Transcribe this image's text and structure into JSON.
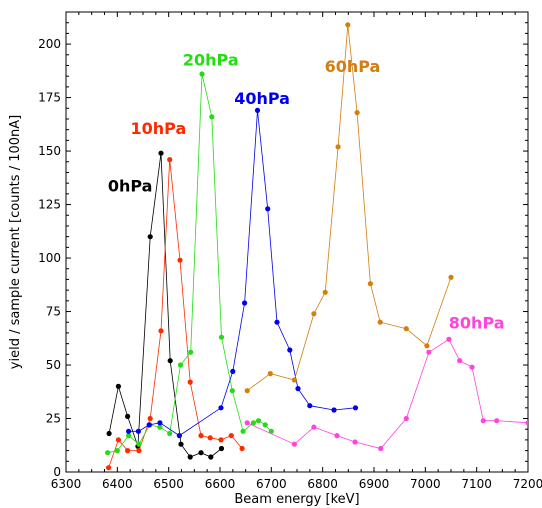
{
  "chart_data": {
    "type": "line",
    "xlabel": "Beam energy [keV]",
    "ylabel": "yield / sample current [counts / 100nA]",
    "xlim": [
      6300,
      7200
    ],
    "ylim": [
      0,
      215
    ],
    "x_ticks": [
      6300,
      6400,
      6500,
      6600,
      6700,
      6800,
      6900,
      7000,
      7100,
      7200
    ],
    "y_ticks": [
      0,
      25,
      50,
      75,
      100,
      125,
      150,
      175,
      200
    ],
    "x_tick_labels": [
      "6300",
      "6400",
      "6500",
      "6600",
      "6700",
      "6800",
      "6900",
      "7000",
      "7100",
      "7200"
    ],
    "y_tick_labels": [
      "0",
      "25",
      "50",
      "75",
      "100",
      "125",
      "150",
      "175",
      "200"
    ],
    "grid": false,
    "series": [
      {
        "name": "0hPa",
        "color": "#000000",
        "points": [
          [
            6384,
            18
          ],
          [
            6402,
            40
          ],
          [
            6420,
            26
          ],
          [
            6440,
            12
          ],
          [
            6464,
            110
          ],
          [
            6485,
            149
          ],
          [
            6503,
            52
          ],
          [
            6524,
            13
          ],
          [
            6542,
            7
          ],
          [
            6563,
            9
          ],
          [
            6582,
            7
          ],
          [
            6603,
            11
          ]
        ]
      },
      {
        "name": "10hPa",
        "color": "#ff2a00",
        "points": [
          [
            6383,
            2
          ],
          [
            6402,
            15
          ],
          [
            6420,
            10
          ],
          [
            6442,
            10
          ],
          [
            6464,
            25
          ],
          [
            6485,
            66
          ],
          [
            6502,
            146
          ],
          [
            6522,
            99
          ],
          [
            6542,
            42
          ],
          [
            6563,
            17
          ],
          [
            6581,
            16
          ],
          [
            6602,
            15
          ],
          [
            6622,
            17
          ],
          [
            6643,
            11
          ]
        ]
      },
      {
        "name": "20hPa",
        "color": "#22dd11",
        "points": [
          [
            6381,
            9
          ],
          [
            6400,
            10
          ],
          [
            6422,
            17
          ],
          [
            6442,
            13
          ],
          [
            6463,
            22
          ],
          [
            6483,
            21
          ],
          [
            6502,
            18
          ],
          [
            6523,
            50
          ],
          [
            6543,
            56
          ],
          [
            6565,
            186
          ],
          [
            6584,
            166
          ],
          [
            6603,
            63
          ],
          [
            6624,
            38
          ],
          [
            6645,
            19
          ],
          [
            6665,
            23
          ],
          [
            6675,
            24
          ],
          [
            6688,
            22
          ],
          [
            6700,
            19
          ]
        ]
      },
      {
        "name": "40hPa",
        "color": "#0000ee",
        "points": [
          [
            6422,
            19
          ],
          [
            6441,
            19
          ],
          [
            6462,
            22
          ],
          [
            6483,
            23
          ],
          [
            6521,
            17
          ],
          [
            6602,
            30
          ],
          [
            6625,
            47
          ],
          [
            6648,
            79
          ],
          [
            6673,
            169
          ],
          [
            6693,
            123
          ],
          [
            6711,
            70
          ],
          [
            6736,
            57
          ],
          [
            6752,
            39
          ],
          [
            6775,
            31
          ],
          [
            6822,
            29
          ],
          [
            6864,
            30
          ]
        ]
      },
      {
        "name": "60hPa",
        "color": "#d27e10",
        "points": [
          [
            6653,
            38
          ],
          [
            6698,
            46
          ],
          [
            6745,
            43
          ],
          [
            6783,
            74
          ],
          [
            6805,
            84
          ],
          [
            6830,
            152
          ],
          [
            6849,
            209
          ],
          [
            6867,
            168
          ],
          [
            6893,
            88
          ],
          [
            6912,
            70
          ],
          [
            6963,
            67
          ],
          [
            7003,
            59
          ],
          [
            7050,
            91
          ]
        ]
      },
      {
        "name": "80hPa",
        "color": "#ff44dd",
        "points": [
          [
            6653,
            23
          ],
          [
            6745,
            13
          ],
          [
            6783,
            21
          ],
          [
            6828,
            17
          ],
          [
            6863,
            14
          ],
          [
            6913,
            11
          ],
          [
            6963,
            25
          ],
          [
            7007,
            56
          ],
          [
            7046,
            62
          ],
          [
            7067,
            52
          ],
          [
            7091,
            49
          ],
          [
            7113,
            24
          ],
          [
            7139,
            24
          ],
          [
            7200,
            23
          ]
        ]
      }
    ],
    "annotations": [
      {
        "text": "0hPa",
        "color": "#000000",
        "x": 6425,
        "y": 131,
        "bold": false
      },
      {
        "text": "10hPa",
        "color": "#ff2a00",
        "x": 6480,
        "y": 158,
        "bold": true
      },
      {
        "text": "20hPa",
        "color": "#22dd11",
        "x": 6582,
        "y": 190,
        "bold": true
      },
      {
        "text": "40hPa",
        "color": "#0000ee",
        "x": 6682,
        "y": 172,
        "bold": true
      },
      {
        "text": "60hPa",
        "color": "#d27e10",
        "x": 6858,
        "y": 187,
        "bold": true
      },
      {
        "text": "80hPa",
        "color": "#ff44dd",
        "x": 7100,
        "y": 67,
        "bold": true
      }
    ]
  }
}
